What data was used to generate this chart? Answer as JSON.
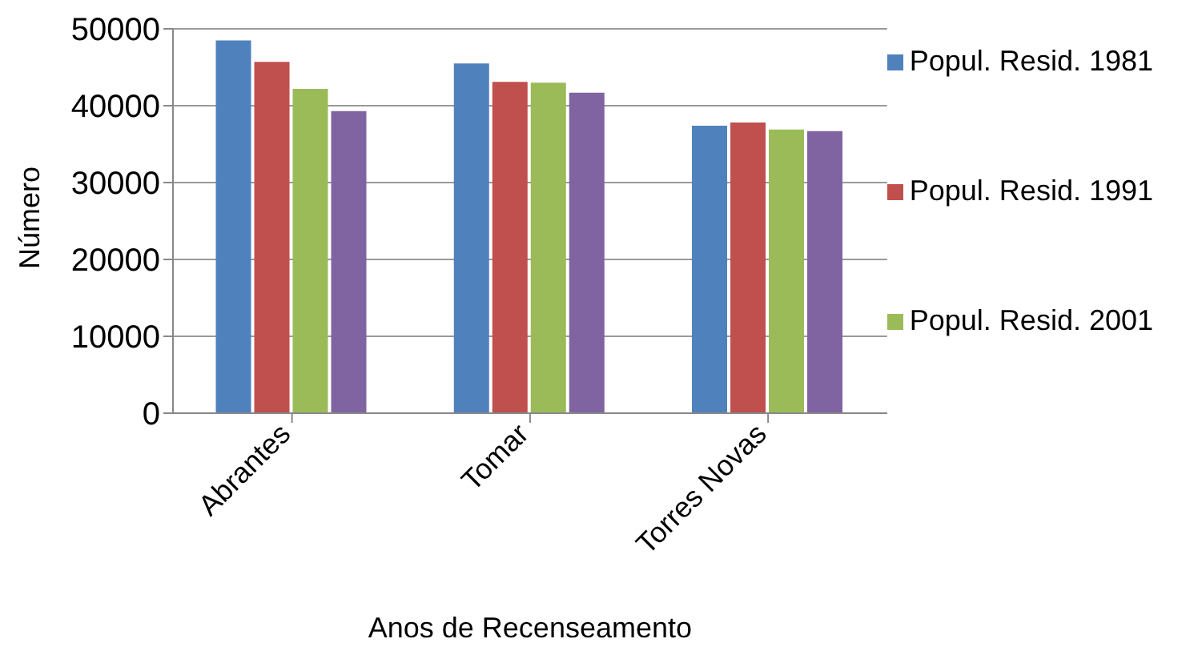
{
  "chart_data": {
    "type": "bar",
    "xlabel": "Anos de Recenseamento",
    "ylabel": "Número",
    "categories": [
      "Abrantes",
      "Tomar",
      "Torres Novas"
    ],
    "series": [
      {
        "name": "Popul. Resid. 1981",
        "color": "#4f81bd",
        "values": [
          48500,
          45500,
          37400
        ]
      },
      {
        "name": "Popul. Resid. 1991",
        "color": "#c0504d",
        "values": [
          45700,
          43100,
          37800
        ]
      },
      {
        "name": "Popul. Resid. 2001",
        "color": "#9bbb59",
        "values": [
          42200,
          43000,
          36900
        ]
      },
      {
        "color": "#8064a2",
        "values": [
          39300,
          41700,
          36700
        ]
      }
    ],
    "ylim": [
      0,
      50000
    ],
    "yticks": [
      0,
      10000,
      20000,
      30000,
      40000,
      50000
    ],
    "grid": "y",
    "legend": "right"
  }
}
